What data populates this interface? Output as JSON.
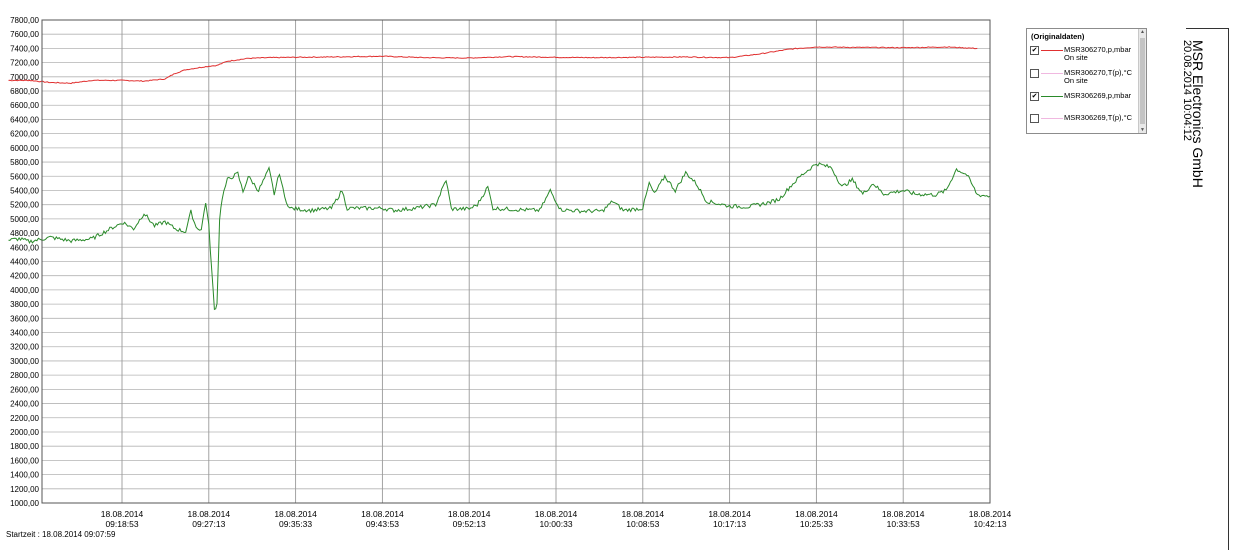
{
  "chart_data": {
    "type": "line",
    "ylim": [
      1000,
      7800
    ],
    "yticks": [
      "7800,00",
      "7600,00",
      "7400,00",
      "7200,00",
      "7000,00",
      "6800,00",
      "6600,00",
      "6400,00",
      "6200,00",
      "6000,00",
      "5800,00",
      "5600,00",
      "5400,00",
      "5200,00",
      "5000,00",
      "4800,00",
      "4600,00",
      "4400,00",
      "4200,00",
      "4000,00",
      "3800,00",
      "3600,00",
      "3400,00",
      "3200,00",
      "3000,00",
      "2800,00",
      "2600,00",
      "2400,00",
      "2200,00",
      "2000,00",
      "1800,00",
      "1600,00",
      "1400,00",
      "1200,00",
      "1000,00"
    ],
    "xticks": [
      {
        "date": "18.08.2014",
        "time": "09:18:53"
      },
      {
        "date": "18.08.2014",
        "time": "09:27:13"
      },
      {
        "date": "18.08.2014",
        "time": "09:35:33"
      },
      {
        "date": "18.08.2014",
        "time": "09:43:53"
      },
      {
        "date": "18.08.2014",
        "time": "09:52:13"
      },
      {
        "date": "18.08.2014",
        "time": "10:00:33"
      },
      {
        "date": "18.08.2014",
        "time": "10:08:53"
      },
      {
        "date": "18.08.2014",
        "time": "10:17:13"
      },
      {
        "date": "18.08.2014",
        "time": "10:25:33"
      },
      {
        "date": "18.08.2014",
        "time": "10:33:53"
      },
      {
        "date": "18.08.2014",
        "time": "10:42:13"
      }
    ],
    "grid": true,
    "legend_position": "right",
    "series": [
      {
        "name": "MSR306270,p,mbar",
        "color": "#e03030",
        "points": [
          [
            "09:07:59",
            6950
          ],
          [
            "09:10:00",
            6950
          ],
          [
            "09:12:00",
            6920
          ],
          [
            "09:14:00",
            6910
          ],
          [
            "09:16:00",
            6950
          ],
          [
            "09:18:53",
            6950
          ],
          [
            "09:21:00",
            6940
          ],
          [
            "09:23:00",
            6970
          ],
          [
            "09:24:00",
            7050
          ],
          [
            "09:25:00",
            7100
          ],
          [
            "09:27:13",
            7150
          ],
          [
            "09:28:00",
            7160
          ],
          [
            "09:29:00",
            7220
          ],
          [
            "09:31:00",
            7260
          ],
          [
            "09:33:00",
            7270
          ],
          [
            "09:35:33",
            7275
          ],
          [
            "09:39:00",
            7280
          ],
          [
            "09:43:53",
            7290
          ],
          [
            "09:48:00",
            7270
          ],
          [
            "09:52:13",
            7265
          ],
          [
            "09:56:00",
            7285
          ],
          [
            "10:00:33",
            7275
          ],
          [
            "10:04:00",
            7270
          ],
          [
            "10:08:53",
            7275
          ],
          [
            "10:13:00",
            7280
          ],
          [
            "10:17:13",
            7270
          ],
          [
            "10:20:00",
            7320
          ],
          [
            "10:23:00",
            7390
          ],
          [
            "10:25:33",
            7420
          ],
          [
            "10:29:00",
            7415
          ],
          [
            "10:33:53",
            7410
          ],
          [
            "10:38:00",
            7420
          ],
          [
            "10:41:00",
            7400
          ]
        ]
      },
      {
        "name": "MSR306270,T(p),°C",
        "color": "#f0b8e0",
        "points": []
      },
      {
        "name": "MSR306269,p,mbar",
        "color": "#2a8a2a",
        "points": [
          [
            "09:07:59",
            4700
          ],
          [
            "09:09:00",
            4720
          ],
          [
            "09:10:00",
            4680
          ],
          [
            "09:12:00",
            4740
          ],
          [
            "09:14:00",
            4690
          ],
          [
            "09:16:00",
            4720
          ],
          [
            "09:17:00",
            4800
          ],
          [
            "09:18:00",
            4880
          ],
          [
            "09:19:00",
            4950
          ],
          [
            "09:20:00",
            4860
          ],
          [
            "09:21:00",
            5080
          ],
          [
            "09:22:00",
            4900
          ],
          [
            "09:23:00",
            4960
          ],
          [
            "09:24:00",
            4860
          ],
          [
            "09:25:00",
            4820
          ],
          [
            "09:25:30",
            5100
          ],
          [
            "09:26:00",
            4880
          ],
          [
            "09:26:30",
            4850
          ],
          [
            "09:26:55",
            5240
          ],
          [
            "09:27:13",
            4900
          ],
          [
            "09:27:30",
            4260
          ],
          [
            "09:27:45",
            3720
          ],
          [
            "09:28:00",
            3800
          ],
          [
            "09:28:15",
            5000
          ],
          [
            "09:28:30",
            5300
          ],
          [
            "09:29:00",
            5550
          ],
          [
            "09:30:00",
            5640
          ],
          [
            "09:30:30",
            5380
          ],
          [
            "09:31:00",
            5600
          ],
          [
            "09:32:00",
            5400
          ],
          [
            "09:33:00",
            5700
          ],
          [
            "09:33:30",
            5350
          ],
          [
            "09:34:00",
            5650
          ],
          [
            "09:34:30",
            5300
          ],
          [
            "09:35:00",
            5150
          ],
          [
            "09:37:00",
            5120
          ],
          [
            "09:39:00",
            5150
          ],
          [
            "09:40:00",
            5400
          ],
          [
            "09:40:30",
            5150
          ],
          [
            "09:43:53",
            5150
          ],
          [
            "09:45:00",
            5120
          ],
          [
            "09:47:00",
            5150
          ],
          [
            "09:49:00",
            5200
          ],
          [
            "09:50:00",
            5550
          ],
          [
            "09:50:30",
            5140
          ],
          [
            "09:52:13",
            5140
          ],
          [
            "09:53:00",
            5200
          ],
          [
            "09:54:00",
            5450
          ],
          [
            "09:54:30",
            5150
          ],
          [
            "09:57:00",
            5130
          ],
          [
            "09:59:00",
            5120
          ],
          [
            "10:00:00",
            5400
          ],
          [
            "10:00:33",
            5250
          ],
          [
            "10:01:00",
            5130
          ],
          [
            "10:03:00",
            5110
          ],
          [
            "10:05:00",
            5110
          ],
          [
            "10:06:00",
            5250
          ],
          [
            "10:07:00",
            5120
          ],
          [
            "10:08:53",
            5150
          ],
          [
            "10:09:30",
            5500
          ],
          [
            "10:10:00",
            5350
          ],
          [
            "10:11:00",
            5600
          ],
          [
            "10:12:00",
            5400
          ],
          [
            "10:13:00",
            5650
          ],
          [
            "10:14:00",
            5500
          ],
          [
            "10:15:00",
            5250
          ],
          [
            "10:17:13",
            5180
          ],
          [
            "10:19:00",
            5170
          ],
          [
            "10:21:00",
            5230
          ],
          [
            "10:22:00",
            5280
          ],
          [
            "10:23:00",
            5450
          ],
          [
            "10:24:00",
            5600
          ],
          [
            "10:25:33",
            5780
          ],
          [
            "10:27:00",
            5720
          ],
          [
            "10:28:00",
            5450
          ],
          [
            "10:29:00",
            5550
          ],
          [
            "10:30:00",
            5350
          ],
          [
            "10:31:00",
            5500
          ],
          [
            "10:32:00",
            5350
          ],
          [
            "10:33:53",
            5400
          ],
          [
            "10:35:00",
            5350
          ],
          [
            "10:37:00",
            5340
          ],
          [
            "10:38:00",
            5400
          ],
          [
            "10:39:00",
            5700
          ],
          [
            "10:40:00",
            5620
          ],
          [
            "10:41:00",
            5340
          ],
          [
            "10:42:13",
            5320
          ]
        ]
      },
      {
        "name": "MSR306269,T(p),°C",
        "color": "#f0b8e0",
        "points": []
      }
    ]
  },
  "legend": {
    "title": "(Originaldaten)",
    "items": [
      {
        "label": "MSR306270,p,mbar",
        "sub": "On site",
        "checked": "✔",
        "color": "#e03030"
      },
      {
        "label": "MSR306270,T(p),°C",
        "sub": "On site",
        "checked": "",
        "color": "#f0b8e0"
      },
      {
        "label": "MSR306269,p,mbar",
        "sub": "",
        "checked": "✔",
        "color": "#2a8a2a"
      },
      {
        "label": "MSR306269,T(p),°C",
        "sub": "",
        "checked": "",
        "color": "#f0b8e0"
      }
    ]
  },
  "company": "MSR Electronics GmbH",
  "timestamp": "20.08.2014 10:04:12",
  "startzeit": "Startzeit : 18.08.2014 09:07:59"
}
